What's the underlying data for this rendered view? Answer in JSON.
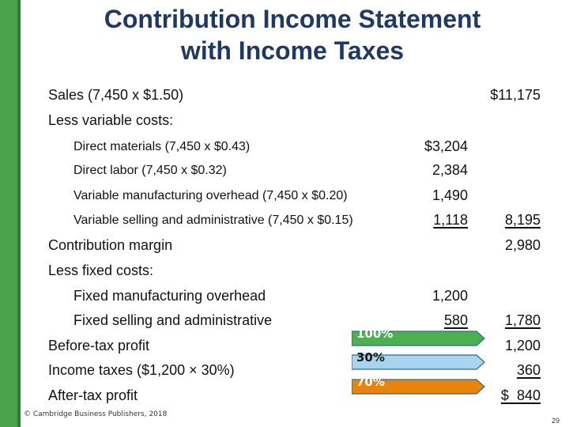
{
  "title_line1": "Contribution Income Statement",
  "title_line2": "with Income Taxes",
  "rows": {
    "sales": {
      "label": "Sales (7,450 x $1.50)",
      "col2": "$11,175"
    },
    "less_variable": {
      "label": "Less variable costs:"
    },
    "dm": {
      "label": "Direct materials (7,450 x $0.43)",
      "col1": "$3,204"
    },
    "dl": {
      "label": "Direct labor (7,450 x $0.32)",
      "col1": "2,384"
    },
    "vmoh": {
      "label": "Variable manufacturing overhead (7,450 x $0.20)",
      "col1": "1,490"
    },
    "vsa": {
      "label": "Variable selling and administrative (7,450 x $0.15)",
      "col1": "1,118",
      "col2": "8,195"
    },
    "cm": {
      "label": "Contribution margin",
      "col2": "2,980"
    },
    "less_fixed": {
      "label": "Less fixed costs:"
    },
    "fmoh": {
      "label": "Fixed manufacturing overhead",
      "col1": "1,200"
    },
    "fsa": {
      "label": "Fixed selling and administrative",
      "col1": "580",
      "col2": "1,780"
    },
    "btp": {
      "label": "Before-tax profit",
      "col2": "1,200"
    },
    "tax": {
      "label": "Income taxes ($1,200 × 30%)",
      "col2": "360"
    },
    "atp": {
      "label": "After-tax profit",
      "col2_sign": "$",
      "col2": "840"
    }
  },
  "arrows": [
    {
      "label": "100%",
      "fill": "#4caf50",
      "text_color": "#ffffff"
    },
    {
      "label": "30%",
      "fill": "#a9d4ef",
      "text_color": "#1a1a1a"
    },
    {
      "label": "70%",
      "fill": "#e8830c",
      "text_color": "#ffffff"
    }
  ],
  "footer": "© Cambridge Business Publishers, 2018",
  "page_number": "29"
}
